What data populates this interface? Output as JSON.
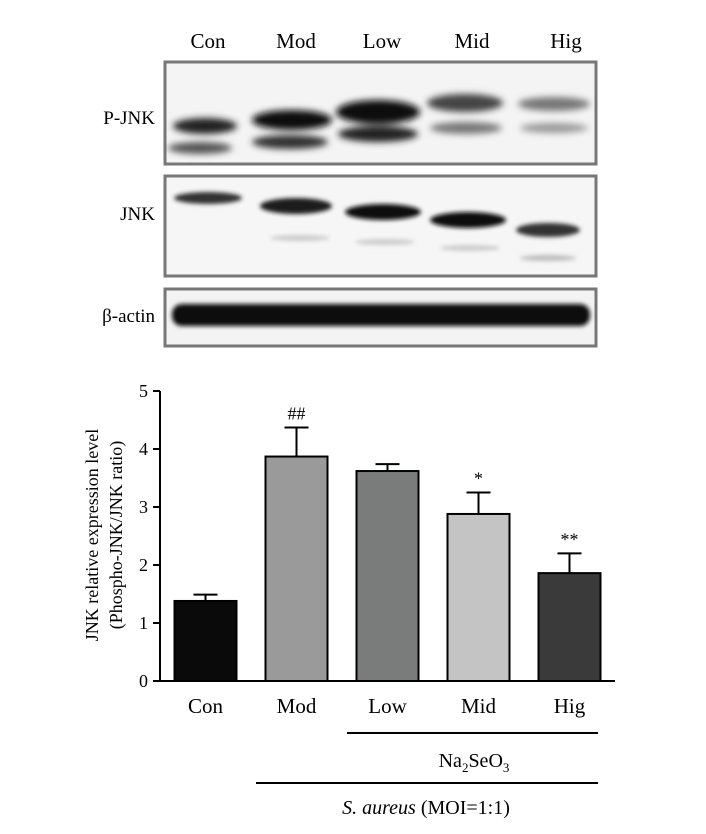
{
  "blot": {
    "lane_labels": [
      "Con",
      "Mod",
      "Low",
      "Mid",
      "Hig"
    ],
    "rows": [
      {
        "label": "P-JNK"
      },
      {
        "label": "JNK"
      },
      {
        "label": "β-actin"
      }
    ]
  },
  "chart_data": {
    "type": "bar",
    "categories": [
      "Con",
      "Mod",
      "Low",
      "Mid",
      "Hig"
    ],
    "values": [
      1.38,
      3.87,
      3.62,
      2.88,
      1.86
    ],
    "errors": [
      0.11,
      0.5,
      0.12,
      0.37,
      0.34
    ],
    "annotations": [
      "",
      "##",
      "",
      "*",
      "**"
    ],
    "bar_colors": [
      "#0a0a0a",
      "#9a9a9a",
      "#7a7c7b",
      "#c4c4c4",
      "#3a3a3a"
    ],
    "ylabel_line1": "JNK relative expression level",
    "ylabel_line2": "(Phospho-JNK/JNK ratio)",
    "ylim": [
      0,
      5
    ],
    "yticks": [
      "0",
      "1",
      "2",
      "3",
      "4",
      "5"
    ],
    "grid": false
  },
  "groups": {
    "treatment_label": "Na2SeO3",
    "treatment_base": "Na",
    "treatment_sub1": "2",
    "treatment_mid": "SeO",
    "treatment_sub2": "3",
    "infection_italic": "S. aureus",
    "infection_rest": " (MOI=1:1)"
  }
}
